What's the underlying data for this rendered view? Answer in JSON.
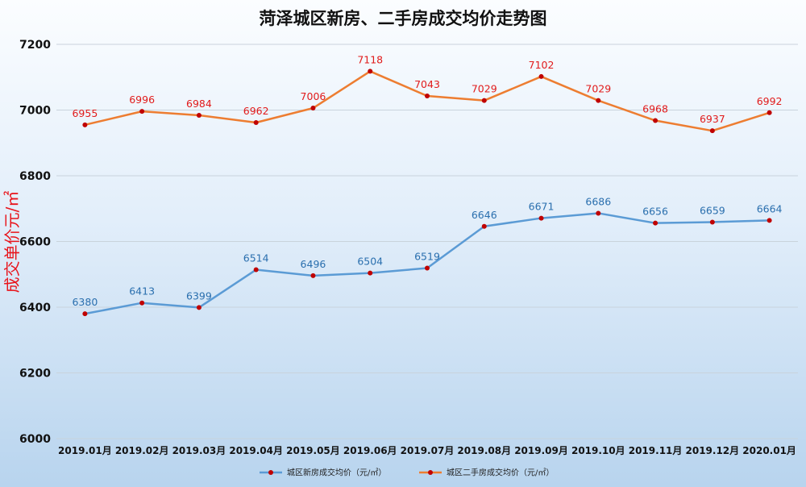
{
  "chart_data": {
    "type": "line",
    "title": "菏泽城区新房、二手房成交均价走势图",
    "ylabel": "成交单价元/㎡",
    "xlabel": "",
    "categories": [
      "2019.01月",
      "2019.02月",
      "2019.03月",
      "2019.04月",
      "2019.05月",
      "2019.06月",
      "2019.07月",
      "2019.08月",
      "2019.09月",
      "2019.10月",
      "2019.11月",
      "2019.12月",
      "2020.01月"
    ],
    "ylim": [
      6000,
      7200
    ],
    "yticks": [
      6000,
      6200,
      6400,
      6600,
      6800,
      7000,
      7200
    ],
    "grid": true,
    "legend_position": "bottom",
    "series": [
      {
        "name": "城区新房成交均价（元/㎡）",
        "color": "#5b9bd5",
        "label_color": "#2a6fae",
        "values": [
          6380,
          6413,
          6399,
          6514,
          6496,
          6504,
          6519,
          6646,
          6671,
          6686,
          6656,
          6659,
          6664
        ]
      },
      {
        "name": "城区二手房成交均价（元/㎡）",
        "color": "#ed7d31",
        "label_color": "#e11b1b",
        "values": [
          6955,
          6996,
          6984,
          6962,
          7006,
          7118,
          7043,
          7029,
          7102,
          7029,
          6968,
          6937,
          6992
        ]
      }
    ],
    "marker_color": "#c00000"
  }
}
